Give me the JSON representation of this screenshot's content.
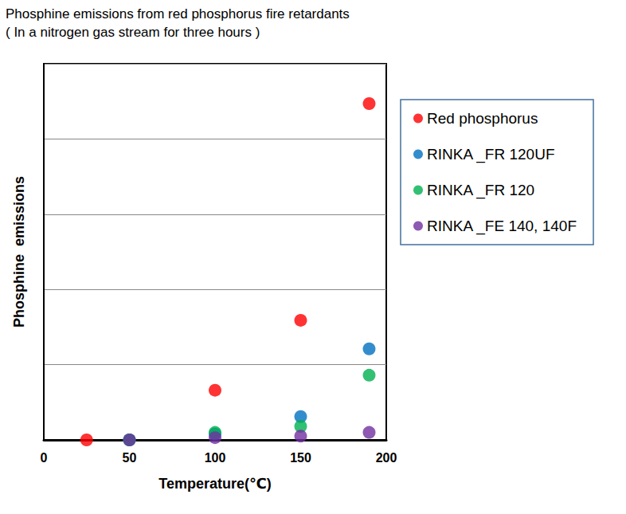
{
  "chart_data": {
    "type": "scatter",
    "title": "Phosphine emissions from red phosphorus fire retardants",
    "subtitle": "( In a nitrogen gas stream for three hours )",
    "x_label": "Temperature(℃)",
    "y_label": "Phosphine  emissions",
    "xlim": [
      0,
      200
    ],
    "xticks": [
      0,
      50,
      100,
      150,
      200
    ],
    "ylim": [
      0,
      5
    ],
    "yticks": [
      0,
      1,
      2,
      3,
      4,
      5
    ],
    "tick_labels": "x",
    "grid": true,
    "legend": "upper right",
    "marker": "circle",
    "series": [
      {
        "name": "Red phosphorus",
        "color": "#ff0000",
        "x": [
          25,
          100,
          150,
          190
        ],
        "values": [
          0,
          0.66,
          1.59,
          4.47
        ]
      },
      {
        "name": "RINKA _FR 120UF",
        "color": "#0070c0",
        "x": [
          50,
          100,
          150,
          190
        ],
        "values": [
          0,
          0.08,
          0.31,
          1.21
        ]
      },
      {
        "name": "RINKA _FR 120",
        "color": "#00b050",
        "x": [
          50,
          100,
          150,
          190
        ],
        "values": [
          0,
          0.1,
          0.18,
          0.86
        ]
      },
      {
        "name": "RINKA _FE 140, 140F",
        "color": "#7030a0",
        "x": [
          50,
          100,
          150,
          190
        ],
        "values": [
          0,
          0.03,
          0.05,
          0.1
        ]
      }
    ]
  }
}
